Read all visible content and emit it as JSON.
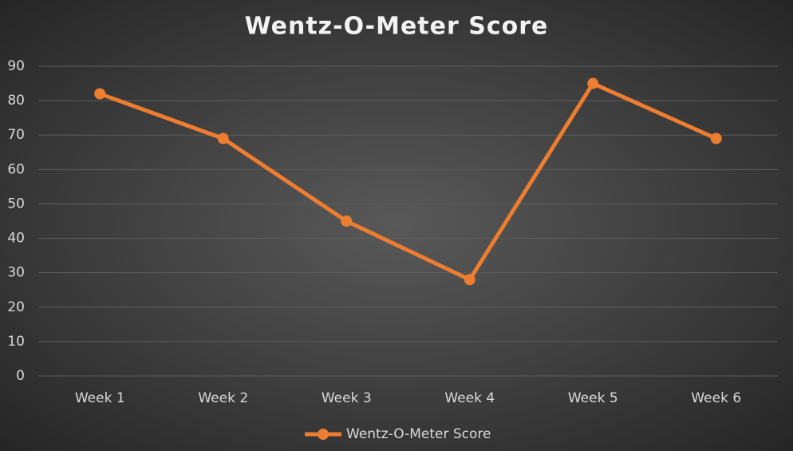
{
  "chart_data": {
    "type": "line",
    "title": "Wentz-O-Meter Score",
    "categories": [
      "Week 1",
      "Week 2",
      "Week 3",
      "Week 4",
      "Week 5",
      "Week 6"
    ],
    "series": [
      {
        "name": "Wentz-O-Meter Score",
        "color": "#ed7d31",
        "values": [
          82,
          69,
          45,
          28,
          85,
          69
        ]
      }
    ],
    "ylim": [
      0,
      90
    ],
    "yticks": [
      0,
      10,
      20,
      30,
      40,
      50,
      60,
      70,
      80,
      90
    ],
    "grid": true,
    "legend": "bottom"
  }
}
